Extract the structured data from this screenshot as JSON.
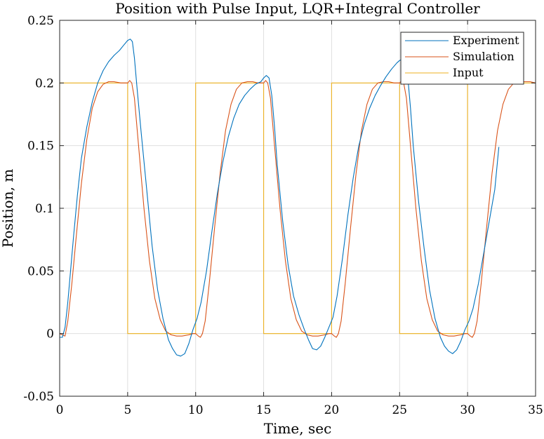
{
  "chart_data": {
    "type": "line",
    "title": "Position with Pulse Input, LQR+Integral Controller",
    "xlabel": "Time, sec",
    "ylabel": "Position, m",
    "xlim": [
      0,
      35
    ],
    "ylim": [
      -0.05,
      0.25
    ],
    "xticks": [
      0,
      5,
      10,
      15,
      20,
      25,
      30,
      35
    ],
    "xtick_labels": [
      "0",
      "5",
      "10",
      "15",
      "20",
      "25",
      "30",
      "35"
    ],
    "yticks": [
      -0.05,
      0,
      0.05,
      0.1,
      0.15,
      0.2,
      0.25
    ],
    "ytick_labels": [
      "-0.05",
      "0",
      "0.05",
      "0.1",
      "0.15",
      "0.2",
      "0.25"
    ],
    "grid": true,
    "legend_position": "top-right",
    "series": [
      {
        "name": "Experiment",
        "color": "#0072BD",
        "x": [
          0,
          0.2,
          0.4,
          0.6,
          0.8,
          1.0,
          1.3,
          1.6,
          2.0,
          2.4,
          2.8,
          3.2,
          3.6,
          4.0,
          4.4,
          4.7,
          5.0,
          5.2,
          5.35,
          5.5,
          5.7,
          6.0,
          6.4,
          6.8,
          7.2,
          7.6,
          8.0,
          8.3,
          8.6,
          8.9,
          9.2,
          9.5,
          9.8,
          10.1,
          10.4,
          10.8,
          11.2,
          11.6,
          12.0,
          12.4,
          12.8,
          13.2,
          13.6,
          14.0,
          14.4,
          14.8,
          15.0,
          15.2,
          15.4,
          15.6,
          15.8,
          16.0,
          16.4,
          16.8,
          17.2,
          17.6,
          18.0,
          18.3,
          18.6,
          18.9,
          19.2,
          19.5,
          19.8,
          20.1,
          20.4,
          20.8,
          21.2,
          21.6,
          22.0,
          22.4,
          22.8,
          23.2,
          23.6,
          24.0,
          24.4,
          24.8,
          25.0,
          25.2,
          25.4,
          25.6,
          25.8,
          26.0,
          26.4,
          26.8,
          27.2,
          27.6,
          28.0,
          28.3,
          28.6,
          28.9,
          29.2,
          29.5,
          29.8,
          30.1,
          30.4,
          30.8,
          31.2,
          31.6,
          32.0,
          32.3
        ],
        "y": [
          -0.003,
          -0.003,
          0.005,
          0.025,
          0.05,
          0.075,
          0.11,
          0.14,
          0.165,
          0.185,
          0.2,
          0.21,
          0.217,
          0.222,
          0.226,
          0.23,
          0.234,
          0.235,
          0.233,
          0.22,
          0.195,
          0.16,
          0.115,
          0.07,
          0.035,
          0.012,
          -0.005,
          -0.012,
          -0.017,
          -0.018,
          -0.016,
          -0.008,
          0.003,
          0.012,
          0.025,
          0.05,
          0.082,
          0.112,
          0.137,
          0.157,
          0.172,
          0.183,
          0.19,
          0.195,
          0.199,
          0.201,
          0.204,
          0.206,
          0.204,
          0.19,
          0.165,
          0.135,
          0.09,
          0.055,
          0.03,
          0.015,
          0.003,
          -0.005,
          -0.012,
          -0.013,
          -0.01,
          -0.003,
          0.005,
          0.013,
          0.03,
          0.06,
          0.095,
          0.125,
          0.15,
          0.167,
          0.18,
          0.19,
          0.198,
          0.205,
          0.211,
          0.216,
          0.218,
          0.219,
          0.218,
          0.205,
          0.18,
          0.15,
          0.105,
          0.068,
          0.035,
          0.012,
          -0.003,
          -0.01,
          -0.014,
          -0.016,
          -0.013,
          -0.006,
          0.003,
          0.01,
          0.02,
          0.04,
          0.065,
          0.09,
          0.115,
          0.149
        ]
      },
      {
        "name": "Simulation",
        "color": "#D95319",
        "x": [
          0,
          0.2,
          0.4,
          0.6,
          0.9,
          1.2,
          1.6,
          2.0,
          2.4,
          2.8,
          3.2,
          3.6,
          4.0,
          4.5,
          5.0,
          5.15,
          5.3,
          5.5,
          5.8,
          6.2,
          6.6,
          7.0,
          7.4,
          7.8,
          8.2,
          8.6,
          9.0,
          9.5,
          9.8,
          10.0,
          10.1,
          10.2,
          10.35,
          10.5,
          10.7,
          11.0,
          11.4,
          11.8,
          12.2,
          12.6,
          13.0,
          13.4,
          13.8,
          14.2,
          14.6,
          15.0,
          15.15,
          15.3,
          15.5,
          15.8,
          16.2,
          16.6,
          17.0,
          17.4,
          17.8,
          18.2,
          18.6,
          19.0,
          19.5,
          19.8,
          20.0,
          20.1,
          20.2,
          20.35,
          20.5,
          20.7,
          21.0,
          21.4,
          21.8,
          22.2,
          22.6,
          23.0,
          23.4,
          23.8,
          24.2,
          24.6,
          25.0,
          25.15,
          25.3,
          25.5,
          25.8,
          26.2,
          26.6,
          27.0,
          27.4,
          27.8,
          28.2,
          28.6,
          29.0,
          29.5,
          29.8,
          30.0,
          30.1,
          30.2,
          30.35,
          30.5,
          30.7,
          31.0,
          31.4,
          31.8,
          32.2,
          32.6,
          33.0,
          33.4,
          33.8,
          34.2,
          34.6,
          35.0
        ],
        "y": [
          0,
          -0.001,
          -0.002,
          0.01,
          0.04,
          0.075,
          0.12,
          0.155,
          0.18,
          0.193,
          0.199,
          0.201,
          0.201,
          0.2,
          0.2,
          0.202,
          0.2,
          0.188,
          0.15,
          0.1,
          0.058,
          0.028,
          0.011,
          0.002,
          -0.001,
          -0.002,
          -0.002,
          -0.001,
          0.0,
          0.0,
          -0.001,
          -0.002,
          -0.003,
          0.0,
          0.01,
          0.04,
          0.085,
          0.128,
          0.162,
          0.183,
          0.195,
          0.2,
          0.201,
          0.201,
          0.2,
          0.2,
          0.202,
          0.2,
          0.188,
          0.15,
          0.1,
          0.058,
          0.028,
          0.011,
          0.002,
          -0.001,
          -0.002,
          -0.002,
          -0.001,
          0.0,
          0.0,
          -0.001,
          -0.002,
          -0.003,
          0.0,
          0.01,
          0.04,
          0.085,
          0.128,
          0.162,
          0.183,
          0.195,
          0.2,
          0.201,
          0.201,
          0.2,
          0.2,
          0.202,
          0.2,
          0.188,
          0.15,
          0.1,
          0.058,
          0.028,
          0.011,
          0.002,
          -0.001,
          -0.002,
          -0.002,
          -0.001,
          0.0,
          0.0,
          -0.001,
          -0.002,
          -0.003,
          0.0,
          0.01,
          0.04,
          0.085,
          0.128,
          0.162,
          0.183,
          0.195,
          0.2,
          0.201,
          0.201,
          0.201,
          0.2
        ]
      },
      {
        "name": "Input",
        "color": "#EDB120",
        "x": [
          0,
          0,
          5,
          5,
          10,
          10,
          15,
          15,
          20,
          20,
          25,
          25,
          30,
          30,
          35
        ],
        "y": [
          0.115,
          0.2,
          0.2,
          0,
          0,
          0.2,
          0.2,
          0,
          0,
          0.2,
          0.2,
          0,
          0,
          0.2,
          0.2
        ]
      }
    ]
  }
}
